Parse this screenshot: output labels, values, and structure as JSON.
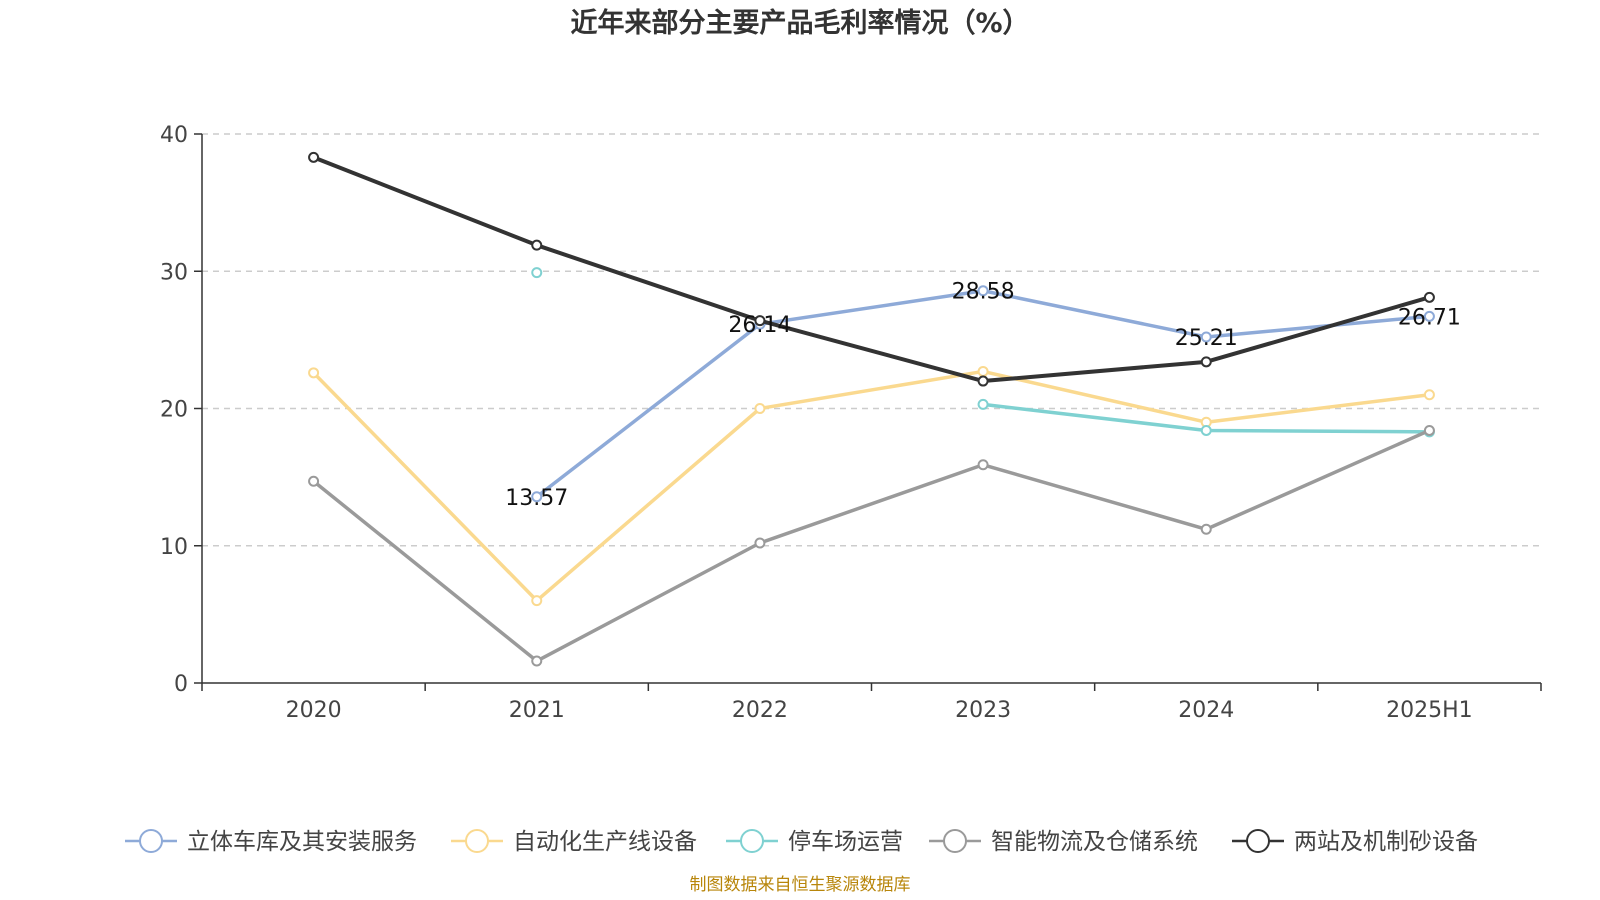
{
  "chart_data": {
    "type": "line",
    "title": "近年来部分主要产品毛利率情况（%）",
    "categories": [
      "2020",
      "2021",
      "2022",
      "2023",
      "2024",
      "2025H1"
    ],
    "ylim": [
      0,
      40
    ],
    "yticks": [
      "0",
      "10",
      "20",
      "30",
      "40"
    ],
    "grid": true,
    "legend_position": "bottom",
    "series": [
      {
        "name": "立体车库及其安装服务",
        "color": "#8eaad8",
        "values": [
          null,
          13.57,
          26.14,
          28.58,
          25.21,
          26.71
        ],
        "labels": [
          "",
          "13.57",
          "26.14",
          "28.58",
          "25.21",
          "26.71"
        ]
      },
      {
        "name": "自动化生产线设备",
        "color": "#fad98f",
        "values": [
          22.6,
          6.0,
          20.0,
          22.7,
          19.0,
          21.0
        ]
      },
      {
        "name": "停车场运营",
        "color": "#7fd1d1",
        "values": [
          null,
          29.9,
          null,
          20.3,
          18.4,
          18.3
        ]
      },
      {
        "name": "智能物流及仓储系统",
        "color": "#9a9a9a",
        "values": [
          14.7,
          1.6,
          10.2,
          15.9,
          11.2,
          18.4
        ]
      },
      {
        "name": "两站及机制砂设备",
        "color": "#333333",
        "values": [
          38.3,
          31.9,
          26.4,
          22.0,
          23.4,
          28.1
        ]
      }
    ]
  },
  "source_note": "制图数据来自恒生聚源数据库"
}
